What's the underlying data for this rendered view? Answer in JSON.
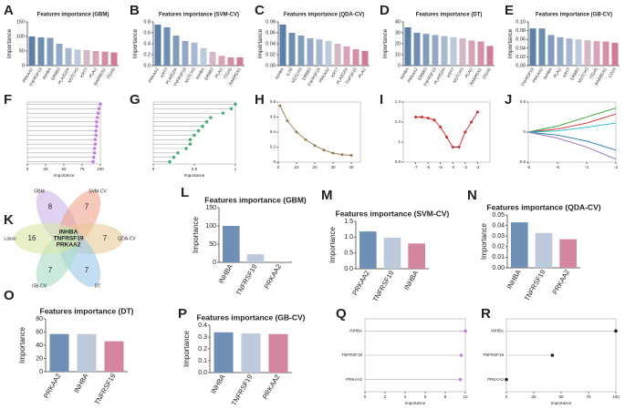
{
  "panels": [
    "A",
    "B",
    "C",
    "D",
    "E",
    "F",
    "G",
    "H",
    "I",
    "J",
    "K",
    "L",
    "M",
    "N",
    "O",
    "P",
    "Q",
    "R"
  ],
  "venn": {
    "center": [
      "INHBA",
      "TNFRSF19",
      "PRKAA2"
    ],
    "counts": [
      8,
      7,
      7,
      7,
      7,
      16
    ],
    "sets": [
      "GBM",
      "SVM-CV",
      "QDA-CV",
      "DT",
      "GB-CV",
      "Lasso"
    ],
    "colors": [
      "#c9b6e8",
      "#f0a58e",
      "#e8c99a",
      "#9cc8e8",
      "#a9dcc5",
      "#d9e6a6"
    ]
  },
  "chart_data": [
    {
      "type": "bar",
      "title": "Features importance (GBM)",
      "ylabel": "Importance",
      "categories": [
        "PRKAA2",
        "TNFRSF19",
        "INHBA",
        "ERBB3",
        "PLA2G2A",
        "NOTCH3",
        "KRT7",
        "PLAU",
        "RARRES1",
        "ITGA5"
      ],
      "values": [
        100,
        97,
        95,
        75,
        60,
        55,
        53,
        50,
        48,
        45
      ],
      "ylim": [
        0,
        150
      ],
      "yticks": [
        0,
        50,
        100,
        150
      ],
      "colors": [
        "#5b7fa8",
        "#6e8db3",
        "#819bbd",
        "#94a9c7",
        "#a7b8d1",
        "#bccadb",
        "#d4b8c8",
        "#d9a3b7",
        "#d48ea6",
        "#cf7a96"
      ]
    },
    {
      "type": "bar",
      "title": "Features importance (SVM-CV)",
      "ylabel": "Importance",
      "categories": [
        "PRKAA2",
        "KRT7",
        "PLA2G2A",
        "TNFRSF19",
        "NOTCH3",
        "INHBA",
        "ERBB3",
        "PLAU",
        "ITGA5",
        "RARRES1"
      ],
      "values": [
        0.75,
        0.7,
        0.55,
        0.45,
        0.42,
        0.32,
        0.25,
        0.18,
        0.15,
        0.15
      ],
      "ylim": [
        0,
        0.8
      ],
      "yticks": [
        {
          "value": 0,
          "label": "0.0"
        },
        0.2,
        0.4,
        0.6,
        0.8
      ],
      "colors": [
        "#5b7fa8",
        "#6e8db3",
        "#819bbd",
        "#94a9c7",
        "#a7b8d1",
        "#bccadb",
        "#d4b8c8",
        "#d9a3b7",
        "#d48ea6",
        "#cf7a96"
      ]
    },
    {
      "type": "bar",
      "title": "Features importance (QDA-CV)",
      "ylabel": "Importance",
      "categories": [
        "INHBA",
        "IL7R",
        "NOTCH3",
        "ERBB3",
        "TNFRSF19",
        "PRKAA2",
        "KRT7",
        "PLA2G2A",
        "TNFSF10",
        "PLAU"
      ],
      "values": [
        0.075,
        0.06,
        0.055,
        0.05,
        0.048,
        0.045,
        0.04,
        0.035,
        0.03,
        0.027
      ],
      "ylim": [
        0,
        0.08
      ],
      "yticks": [
        {
          "value": 0,
          "label": "0.00"
        },
        0.02,
        0.04,
        0.06,
        0.08
      ],
      "colors": [
        "#5b7fa8",
        "#6e8db3",
        "#819bbd",
        "#94a9c7",
        "#a7b8d1",
        "#bccadb",
        "#d4b8c8",
        "#d9a3b7",
        "#d48ea6",
        "#cf7a96"
      ]
    },
    {
      "type": "bar",
      "title": "Features importance (DT)",
      "ylabel": "Importance",
      "categories": [
        "INHBA",
        "PRKAA2",
        "ERBB3",
        "TNFRSF19",
        "PLA2G2A",
        "KRT7",
        "NOTCH3",
        "PLAU",
        "RARRES1",
        "ITGA5"
      ],
      "values": [
        35,
        30,
        29,
        28,
        27,
        26,
        25,
        23,
        22,
        18
      ],
      "ylim": [
        0,
        40
      ],
      "yticks": [
        0,
        10,
        20,
        30,
        40
      ],
      "colors": [
        "#5b7fa8",
        "#6e8db3",
        "#819bbd",
        "#94a9c7",
        "#a7b8d1",
        "#bccadb",
        "#d4b8c8",
        "#d9a3b7",
        "#d48ea6",
        "#cf7a96"
      ]
    },
    {
      "type": "bar",
      "title": "Features importance (GB-CV)",
      "ylabel": "Importance",
      "categories": [
        "TNFRSF19",
        "PRKAA2",
        "INHBA",
        "PLAU",
        "KRT7",
        "ERBB3",
        "NOTCH3",
        "ITGA5",
        "RARRES1",
        "CD24"
      ],
      "values": [
        0.085,
        0.085,
        0.07,
        0.065,
        0.062,
        0.06,
        0.058,
        0.056,
        0.055,
        0.052
      ],
      "ylim": [
        0,
        0.1
      ],
      "yticks": [
        {
          "value": 0,
          "label": "0.00"
        },
        0.02,
        0.04,
        0.06,
        0.08,
        {
          "value": 0.1,
          "label": "0.10"
        }
      ],
      "colors": [
        "#5b7fa8",
        "#6e8db3",
        "#819bbd",
        "#94a9c7",
        "#a7b8d1",
        "#bccadb",
        "#d4b8c8",
        "#d9a3b7",
        "#d48ea6",
        "#cf7a96"
      ]
    },
    {
      "type": "lollipop",
      "xlabel": "Importance",
      "categories": [
        null,
        null,
        null,
        null,
        null,
        null,
        null,
        null,
        null,
        null,
        null,
        null,
        null,
        null
      ],
      "values": [
        100,
        98,
        97,
        96,
        95,
        95,
        94,
        94,
        93,
        93,
        92,
        92,
        91,
        90
      ],
      "xlim": [
        0,
        100
      ],
      "xticks": [
        0,
        25,
        50,
        75,
        100
      ],
      "dot_color": "#c77de0"
    },
    {
      "type": "lollipop",
      "xlabel": "Importance",
      "categories": [
        null,
        null,
        null,
        null,
        null,
        null,
        null,
        null,
        null,
        null,
        null,
        null,
        null,
        null
      ],
      "values": [
        1.0,
        0.95,
        0.85,
        0.7,
        0.65,
        0.6,
        0.55,
        0.5,
        0.45,
        0.45,
        0.4,
        0.3,
        0.25,
        0.2
      ],
      "xlim": [
        0,
        1
      ],
      "xticks": [
        0,
        0.5,
        1
      ],
      "dot_color": "#4caf7a"
    },
    {
      "type": "line",
      "x": [
        1,
        5,
        10,
        15,
        20,
        25,
        30,
        35,
        40
      ],
      "series": [
        {
          "color": "#9a7a4e",
          "values": [
            0.75,
            0.55,
            0.4,
            0.3,
            0.22,
            0.16,
            0.12,
            0.1,
            0.09
          ]
        }
      ],
      "xlim": [
        0,
        45
      ],
      "xticks": [
        0,
        10,
        20,
        30,
        40
      ],
      "ylim": [
        0,
        0.8
      ],
      "yticks": [
        0,
        0.2,
        0.4,
        0.6,
        0.8
      ],
      "markers": true
    },
    {
      "type": "line",
      "x": [
        -7,
        -6.5,
        -6,
        -5.5,
        -5,
        -4.5,
        -4,
        -3.5,
        -3,
        -2.5,
        -2
      ],
      "series": [
        {
          "color": "#d62728",
          "values": [
            1.25,
            1.25,
            1.24,
            1.22,
            1.15,
            1.05,
            0.95,
            0.95,
            1.1,
            1.2,
            1.3
          ]
        }
      ],
      "xlim": [
        -8,
        -1
      ],
      "xticks": [
        -7,
        -6,
        -5,
        -4,
        -3,
        -2
      ],
      "ylim": [
        0.8,
        1.4
      ],
      "yticks": [
        0.8,
        1.0,
        1.2,
        1.4
      ],
      "markers": true
    },
    {
      "type": "line",
      "x": [
        -8,
        -6,
        -4,
        -2
      ],
      "series": [
        {
          "color": "#2ca02c",
          "values": [
            0,
            0.1,
            0.25,
            0.4
          ]
        },
        {
          "color": "#d62728",
          "values": [
            0,
            0.05,
            0.15,
            0.3
          ]
        },
        {
          "color": "#1f77b4",
          "values": [
            0,
            -0.05,
            -0.15,
            -0.3
          ]
        },
        {
          "color": "#9467bd",
          "values": [
            0,
            -0.1,
            -0.25,
            -0.45
          ]
        },
        {
          "color": "#17becf",
          "values": [
            0,
            0.02,
            0.08,
            0.15
          ]
        }
      ],
      "xlim": [
        -8,
        -2
      ],
      "xticks": [
        -8,
        -6,
        -4,
        -2
      ],
      "ylim": [
        -0.5,
        0.5
      ],
      "yticks": [
        -0.5,
        0,
        0.5
      ],
      "markers": false
    },
    {
      "type": "bar",
      "title": "Features importance (GBM)",
      "ylabel": "Importance",
      "categories": [
        "INHBA",
        "TNFRSF19",
        "PRKAA2"
      ],
      "values": [
        100,
        22,
        0.5
      ],
      "ylim": [
        0,
        150
      ],
      "yticks": [
        0,
        50,
        100,
        150
      ],
      "colors": [
        "#6f8fb5",
        "#bccadb",
        "#d4869f"
      ]
    },
    {
      "type": "bar",
      "title": "Features importance (SVM-CV)",
      "ylabel": "Importance",
      "categories": [
        "PRKAA2",
        "TNFRSF19",
        "INHBA"
      ],
      "values": [
        1.18,
        0.98,
        0.8
      ],
      "ylim": [
        0,
        1.5
      ],
      "yticks": [
        {
          "value": 0,
          "label": "0.0"
        },
        0.5,
        {
          "value": 1,
          "label": "1.0"
        },
        1.5
      ],
      "colors": [
        "#6f8fb5",
        "#bccadb",
        "#d4869f"
      ]
    },
    {
      "type": "bar",
      "title": "Features importance (QDA-CV)",
      "ylabel": "Importance",
      "categories": [
        "INHBA",
        "TNFRSF19",
        "PRKAA2"
      ],
      "values": [
        0.043,
        0.033,
        0.027
      ],
      "ylim": [
        0,
        0.05
      ],
      "yticks": [
        {
          "value": 0,
          "label": "0.00"
        },
        {
          "value": 0.01,
          "label": "0.01"
        },
        {
          "value": 0.02,
          "label": "0.02"
        },
        {
          "value": 0.03,
          "label": "0.03"
        },
        {
          "value": 0.04,
          "label": "0.04"
        },
        {
          "value": 0.05,
          "label": "0.05"
        }
      ],
      "colors": [
        "#6f8fb5",
        "#bccadb",
        "#d4869f"
      ]
    },
    {
      "type": "bar",
      "title": "Features importance (DT)",
      "ylabel": "Importance",
      "categories": [
        "PRKAA2",
        "INHBA",
        "TNFRSF19"
      ],
      "values": [
        57,
        57,
        46
      ],
      "ylim": [
        0,
        80
      ],
      "yticks": [
        0,
        20,
        40,
        60,
        80
      ],
      "colors": [
        "#6f8fb5",
        "#bccadb",
        "#d4869f"
      ]
    },
    {
      "type": "bar",
      "title": "Features importance (GB-CV)",
      "ylabel": "Importance",
      "categories": [
        "INHBA",
        "TNFRSF19",
        "PRKAA2"
      ],
      "values": [
        0.34,
        0.33,
        0.325
      ],
      "ylim": [
        0,
        0.4
      ],
      "yticks": [
        {
          "value": 0,
          "label": "0.0"
        },
        0.1,
        0.2,
        0.3,
        0.4
      ],
      "colors": [
        "#6f8fb5",
        "#bccadb",
        "#d4869f"
      ]
    },
    {
      "type": "lollipop",
      "xlabel": "Importance",
      "categories": [
        "INHBA",
        "TNFRSF19",
        "PRKAA2"
      ],
      "values": [
        10,
        9.6,
        9.5
      ],
      "xlim": [
        0,
        10
      ],
      "xticks": [
        0,
        2,
        4,
        6,
        8,
        10
      ],
      "dot_color": "#c77de0"
    },
    {
      "type": "lollipop",
      "xlabel": "Importance",
      "categories": [
        "INHBA",
        "TNFRSF19",
        "PRKAA2"
      ],
      "values": [
        100,
        42,
        0
      ],
      "xlim": [
        0,
        100
      ],
      "xticks": [
        0,
        25,
        50,
        75,
        100
      ],
      "dot_color": "#222222"
    }
  ]
}
